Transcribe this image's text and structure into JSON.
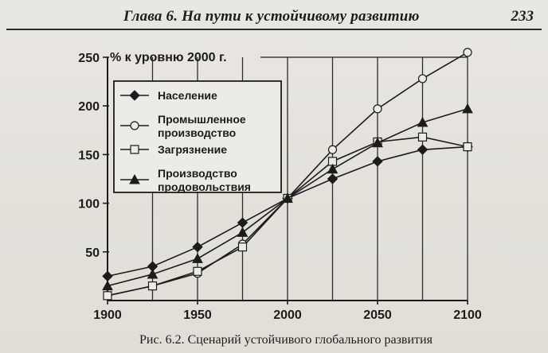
{
  "header": {
    "title": "Глава 6. На пути к устойчивому развитию",
    "page_number": "233"
  },
  "caption": "Рис. 6.2. Сценарий устойчивого глобального развития",
  "chart_data": {
    "type": "line",
    "unit_label": "% к уровню 2000 г.",
    "x": [
      1900,
      1925,
      1950,
      1975,
      2000,
      2025,
      2050,
      2075,
      2100
    ],
    "xticks": [
      "1900",
      "1950",
      "2000",
      "2050",
      "2100"
    ],
    "xlim": [
      1900,
      2100
    ],
    "ylim": [
      0,
      250
    ],
    "yticks": [
      "50",
      "100",
      "150",
      "200",
      "250"
    ],
    "grid": {
      "vertical": true,
      "horizontal": false
    },
    "legend_position": "top-left",
    "series": [
      {
        "name": "Население",
        "marker": "diamond",
        "values": [
          25,
          35,
          55,
          80,
          105,
          125,
          143,
          155,
          158
        ]
      },
      {
        "name": "Промышленное производство",
        "marker": "circle",
        "values": [
          5,
          15,
          28,
          58,
          105,
          155,
          197,
          228,
          255
        ]
      },
      {
        "name": "Загрязнение",
        "marker": "square",
        "values": [
          5,
          15,
          30,
          55,
          105,
          143,
          163,
          168,
          158
        ]
      },
      {
        "name": "Производство продовольствия",
        "marker": "triangle",
        "values": [
          15,
          27,
          43,
          70,
          105,
          135,
          162,
          183,
          197
        ]
      }
    ],
    "legend": [
      {
        "name": "Население",
        "marker": "diamond",
        "lines": [
          "Население"
        ]
      },
      {
        "name": "Промышленное производство",
        "marker": "circle",
        "lines": [
          "Промышленное",
          "производство"
        ]
      },
      {
        "name": "Загрязнение",
        "marker": "square",
        "lines": [
          "Загрязнение"
        ]
      },
      {
        "name": "Производство продовольствия",
        "marker": "triangle",
        "lines": [
          "Производство",
          "продовольствия"
        ]
      }
    ]
  }
}
